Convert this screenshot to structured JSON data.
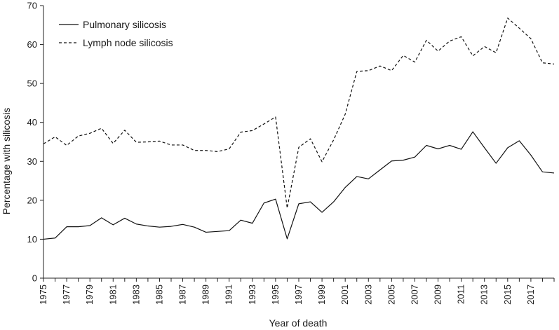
{
  "chart_data": {
    "type": "line",
    "xlabel": "Year of death",
    "ylabel": "Percentage with silicosis",
    "xlim": [
      1975,
      2019
    ],
    "ylim": [
      0,
      70
    ],
    "yticks": [
      0,
      10,
      20,
      30,
      40,
      50,
      60,
      70
    ],
    "xticks": [
      1975,
      1977,
      1979,
      1981,
      1983,
      1985,
      1987,
      1989,
      1991,
      1993,
      1995,
      1997,
      1999,
      2001,
      2003,
      2005,
      2007,
      2009,
      2011,
      2013,
      2015,
      2017
    ],
    "grid": false,
    "legend_position": "top-left",
    "x": [
      1975,
      1976,
      1977,
      1978,
      1979,
      1980,
      1981,
      1982,
      1983,
      1984,
      1985,
      1986,
      1987,
      1988,
      1989,
      1990,
      1991,
      1992,
      1993,
      1994,
      1995,
      1996,
      1997,
      1998,
      1999,
      2000,
      2001,
      2002,
      2003,
      2004,
      2005,
      2006,
      2007,
      2008,
      2009,
      2010,
      2011,
      2012,
      2013,
      2014,
      2015,
      2016,
      2017,
      2018,
      2019
    ],
    "series": [
      {
        "name": "Pulmonary silicosis",
        "style": "solid",
        "values": [
          10.0,
          10.3,
          13.2,
          13.2,
          13.5,
          15.5,
          13.7,
          15.4,
          13.9,
          13.4,
          13.1,
          13.3,
          13.8,
          13.1,
          11.8,
          12.0,
          12.2,
          14.9,
          14.1,
          19.3,
          20.3,
          10.1,
          19.1,
          19.6,
          16.9,
          19.6,
          23.3,
          26.1,
          25.5,
          27.8,
          30.1,
          30.3,
          31.1,
          34.1,
          33.2,
          34.1,
          33.1,
          37.6,
          33.5,
          29.5,
          33.5,
          35.3,
          31.6,
          27.3,
          27.0
        ]
      },
      {
        "name": "Lymph node silicosis",
        "style": "dashed",
        "values": [
          34.5,
          36.3,
          34.1,
          36.5,
          37.2,
          38.5,
          34.6,
          38.0,
          34.9,
          35.0,
          35.2,
          34.2,
          34.2,
          32.8,
          32.8,
          32.5,
          33.2,
          37.5,
          37.9,
          39.6,
          41.4,
          18.0,
          33.6,
          35.8,
          29.9,
          35.5,
          42.1,
          53.1,
          53.3,
          54.5,
          53.3,
          57.2,
          55.5,
          61.1,
          58.3,
          60.9,
          62.0,
          57.1,
          59.5,
          57.9,
          66.8,
          64.2,
          61.5,
          55.3,
          55.0
        ]
      }
    ]
  }
}
